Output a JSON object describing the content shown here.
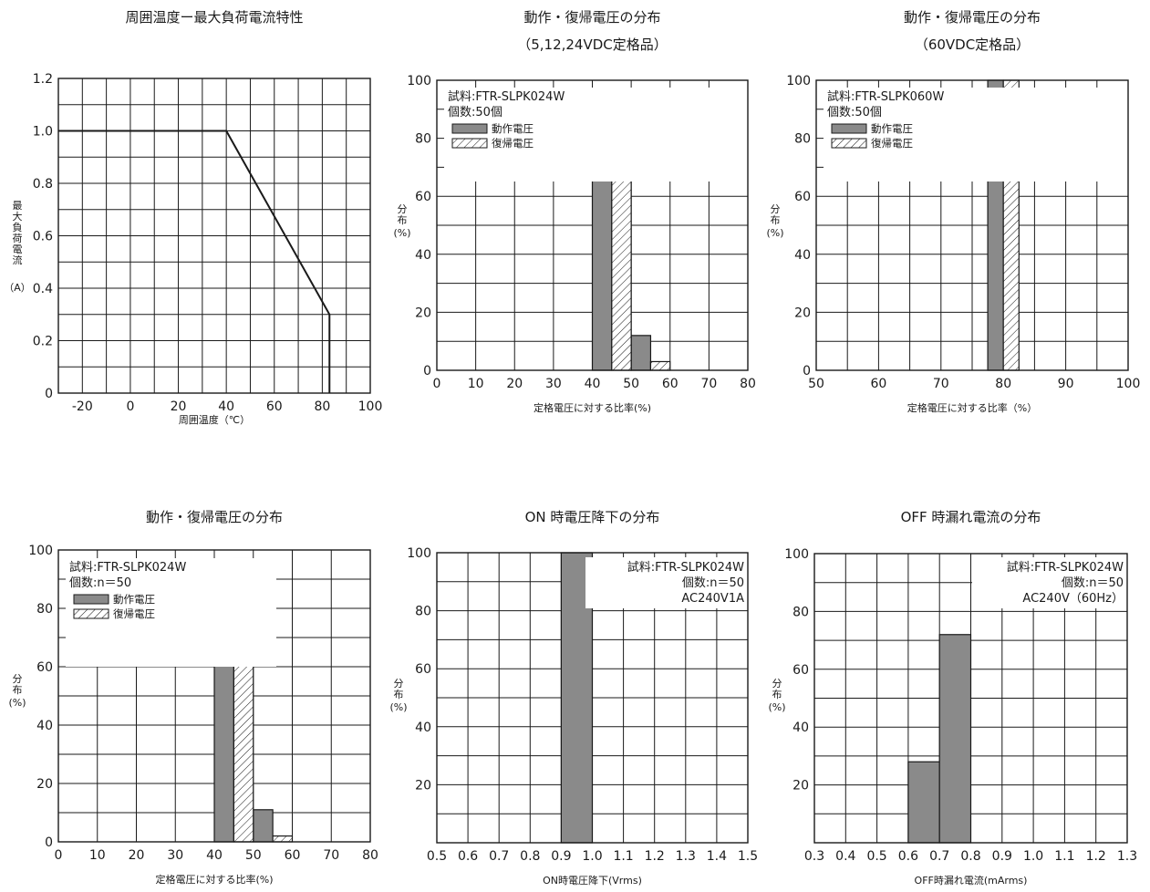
{
  "chart_data": [
    {
      "type": "line",
      "title": "周囲温度ー最大負荷電流特性",
      "xlabel": "周囲温度（℃）",
      "ylabel": "最大負荷電流",
      "yunit": "（A）",
      "xlim": [
        -30,
        100
      ],
      "ylim": [
        0,
        1.2
      ],
      "xticks": [
        "-20",
        "0",
        "20",
        "40",
        "60",
        "80",
        "100"
      ],
      "yticks": [
        "0",
        "0.2",
        "0.4",
        "0.6",
        "0.8",
        "1.0",
        "1.2"
      ],
      "grid": true,
      "series": [
        {
          "x": [
            -30,
            40,
            83,
            83
          ],
          "y": [
            1.0,
            1.0,
            0.3,
            0
          ]
        }
      ]
    },
    {
      "type": "bar",
      "title": "動作・復帰電圧の分布",
      "subtitle": "（5,12,24VDC定格品）",
      "xlabel": "定格電圧に対する比率(%)",
      "ylabel": "分布",
      "yunit": "(%)",
      "xlim": [
        0,
        80
      ],
      "ylim": [
        0,
        100
      ],
      "xticks": [
        "0",
        "10",
        "20",
        "30",
        "40",
        "50",
        "60",
        "70",
        "80"
      ],
      "yticks": [
        "0",
        "20",
        "40",
        "60",
        "80",
        "100"
      ],
      "grid": true,
      "notes": [
        "試料:FTR-SLPK024W",
        "個数:50個"
      ],
      "legend": [
        "動作電圧",
        "復帰電圧"
      ],
      "series": [
        {
          "name": "動作電圧",
          "bins": [
            [
              40,
              45,
              88
            ],
            [
              50,
              55,
              12
            ]
          ]
        },
        {
          "name": "復帰電圧",
          "bins": [
            [
              45,
              50,
              97
            ],
            [
              55,
              60,
              3
            ]
          ]
        }
      ]
    },
    {
      "type": "bar",
      "title": "動作・復帰電圧の分布",
      "subtitle": "（60VDC定格品）",
      "xlabel": "定格電圧に対する比率（%）",
      "ylabel": "分布",
      "yunit": "(%)",
      "xlim": [
        50,
        100
      ],
      "ylim": [
        0,
        100
      ],
      "xticks": [
        "50",
        "60",
        "70",
        "80",
        "90",
        "100"
      ],
      "yticks": [
        "0",
        "20",
        "40",
        "60",
        "80",
        "100"
      ],
      "grid": true,
      "notes": [
        "試料:FTR-SLPK060W",
        "個数:50個"
      ],
      "legend": [
        "動作電圧",
        "復帰電圧"
      ],
      "series": [
        {
          "name": "動作電圧",
          "bins": [
            [
              77.5,
              80,
              100
            ]
          ]
        },
        {
          "name": "復帰電圧",
          "bins": [
            [
              80,
              82.5,
              100
            ]
          ]
        }
      ]
    },
    {
      "type": "bar",
      "title": "動作・復帰電圧の分布",
      "xlabel": "定格電圧に対する比率(%)",
      "ylabel": "分布",
      "yunit": "(%)",
      "xlim": [
        0,
        80
      ],
      "ylim": [
        0,
        100
      ],
      "xticks": [
        "0",
        "10",
        "20",
        "30",
        "40",
        "50",
        "60",
        "70",
        "80"
      ],
      "yticks": [
        "0",
        "20",
        "40",
        "60",
        "80",
        "100"
      ],
      "grid": true,
      "notes": [
        "試料:FTR-SLPK024W",
        "個数:n＝50"
      ],
      "legend": [
        "動作電圧",
        "復帰電圧"
      ],
      "series": [
        {
          "name": "動作電圧",
          "bins": [
            [
              40,
              45,
              88
            ],
            [
              50,
              55,
              11
            ]
          ]
        },
        {
          "name": "復帰電圧",
          "bins": [
            [
              45,
              50,
              97
            ],
            [
              55,
              60,
              2
            ]
          ]
        }
      ]
    },
    {
      "type": "bar",
      "title": "ON 時電圧降下の分布",
      "xlabel": "ON時電圧降下(Vrms)",
      "ylabel": "分布",
      "yunit": "(%)",
      "xlim": [
        0.5,
        1.5
      ],
      "ylim": [
        0,
        100
      ],
      "xticks": [
        "0.5",
        "0.6",
        "0.7",
        "0.8",
        "0.9",
        "1.0",
        "1.1",
        "1.2",
        "1.3",
        "1.4",
        "1.5"
      ],
      "yticks": [
        "20",
        "40",
        "60",
        "80",
        "100"
      ],
      "grid": true,
      "notes": [
        "試料:FTR-SLPK024W",
        "個数:n＝50",
        "AC240V1A"
      ],
      "series": [
        {
          "bins": [
            [
              0.9,
              1.0,
              100
            ]
          ]
        }
      ]
    },
    {
      "type": "bar",
      "title": "OFF 時漏れ電流の分布",
      "xlabel": "OFF時漏れ電流(mArms)",
      "ylabel": "分布",
      "yunit": "(%)",
      "xlim": [
        0.3,
        1.3
      ],
      "ylim": [
        0,
        100
      ],
      "xticks": [
        "0.3",
        "0.4",
        "0.5",
        "0.6",
        "0.7",
        "0.8",
        "0.9",
        "1.0",
        "1.1",
        "1.2",
        "1.3"
      ],
      "yticks": [
        "20",
        "40",
        "60",
        "80",
        "100"
      ],
      "grid": true,
      "notes": [
        "試料:FTR-SLPK024W",
        "個数:n＝50",
        "AC240V（60Hz）"
      ],
      "series": [
        {
          "bins": [
            [
              0.6,
              0.7,
              28
            ],
            [
              0.7,
              0.8,
              72
            ]
          ]
        }
      ]
    }
  ]
}
